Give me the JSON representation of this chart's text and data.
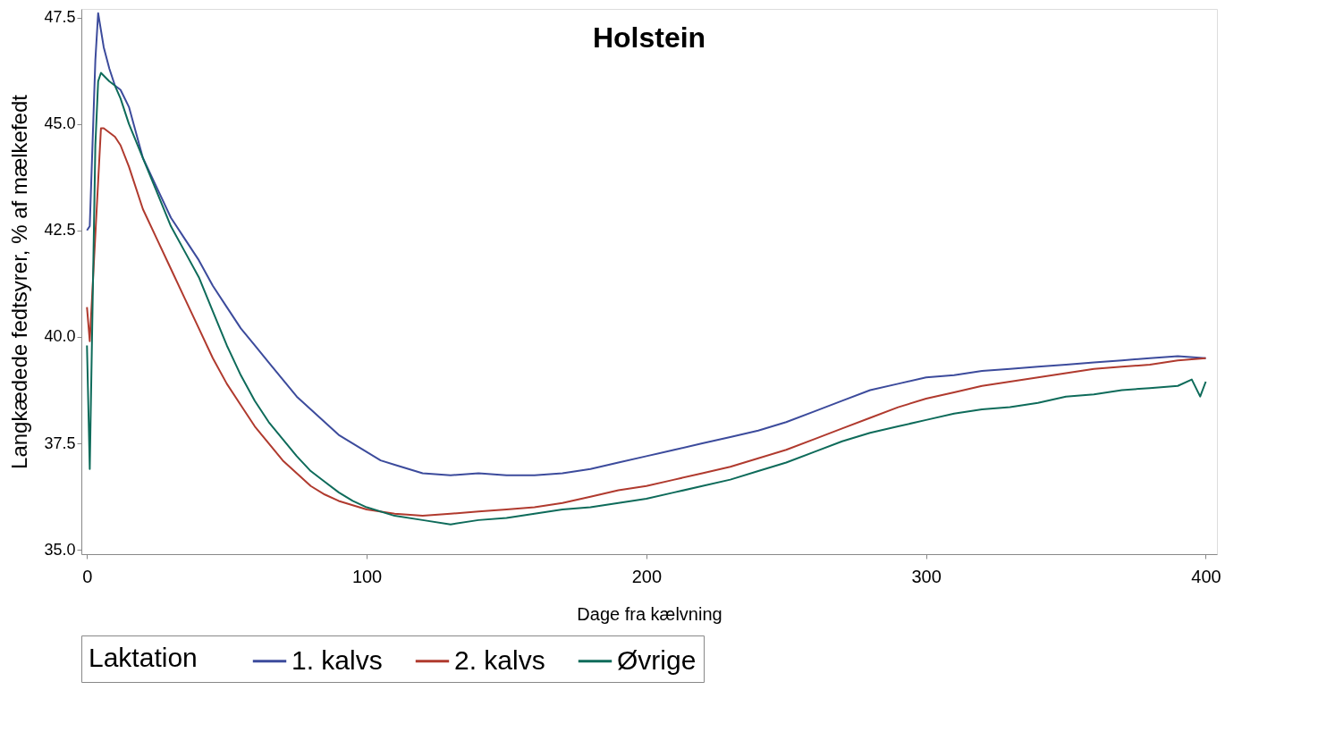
{
  "chart_data": {
    "type": "line",
    "title": "Holstein",
    "xlabel": "Dage fra kælvning",
    "ylabel": "Langkædede fedtsyrer, % af mælkefedt",
    "legend_title": "Laktation",
    "legend": "bottom",
    "grid": false,
    "line_style": "solid",
    "marker": "none",
    "xlim": [
      -2,
      404
    ],
    "ylim": [
      34.9,
      47.7
    ],
    "xticks": [
      0,
      100,
      200,
      300,
      400
    ],
    "yticks": [
      {
        "value": 35,
        "label": "35.0"
      },
      {
        "value": 37.5,
        "label": "37.5"
      },
      {
        "value": 40,
        "label": "40.0"
      },
      {
        "value": 42.5,
        "label": "42.5"
      },
      {
        "value": 45,
        "label": "45.0"
      },
      {
        "value": 47.5,
        "label": "47.5"
      }
    ],
    "series": [
      {
        "name": "1. kalvs",
        "color": "#3c4b9c",
        "x": [
          0,
          1,
          3,
          4,
          6,
          8,
          10,
          12,
          15,
          20,
          25,
          30,
          35,
          40,
          45,
          50,
          55,
          60,
          65,
          70,
          75,
          80,
          85,
          90,
          95,
          100,
          105,
          110,
          120,
          130,
          140,
          150,
          160,
          170,
          180,
          190,
          200,
          210,
          220,
          230,
          240,
          250,
          260,
          270,
          280,
          290,
          300,
          310,
          320,
          330,
          340,
          350,
          360,
          370,
          380,
          390,
          400
        ],
        "values": [
          42.5,
          42.6,
          46.5,
          47.6,
          46.8,
          46.3,
          45.9,
          45.8,
          45.4,
          44.2,
          43.5,
          42.8,
          42.3,
          41.8,
          41.2,
          40.7,
          40.2,
          39.8,
          39.4,
          39.0,
          38.6,
          38.3,
          38.0,
          37.7,
          37.5,
          37.3,
          37.1,
          37.0,
          36.8,
          36.75,
          36.8,
          36.75,
          36.75,
          36.8,
          36.9,
          37.05,
          37.2,
          37.35,
          37.5,
          37.65,
          37.8,
          38.0,
          38.25,
          38.5,
          38.75,
          38.9,
          39.05,
          39.1,
          39.2,
          39.25,
          39.3,
          39.35,
          39.4,
          39.45,
          39.5,
          39.55,
          39.5
        ]
      },
      {
        "name": "2. kalvs",
        "color": "#b03a2e",
        "x": [
          0,
          1,
          5,
          6,
          8,
          10,
          12,
          15,
          20,
          25,
          30,
          35,
          40,
          45,
          50,
          55,
          60,
          65,
          70,
          75,
          80,
          85,
          90,
          95,
          100,
          110,
          120,
          130,
          140,
          150,
          160,
          170,
          180,
          190,
          200,
          210,
          220,
          230,
          240,
          250,
          260,
          270,
          280,
          290,
          300,
          310,
          320,
          330,
          340,
          350,
          360,
          370,
          380,
          390,
          400
        ],
        "values": [
          40.7,
          39.9,
          44.9,
          44.9,
          44.8,
          44.7,
          44.5,
          44.0,
          43.0,
          42.3,
          41.6,
          40.9,
          40.2,
          39.5,
          38.9,
          38.4,
          37.9,
          37.5,
          37.1,
          36.8,
          36.5,
          36.3,
          36.15,
          36.05,
          35.95,
          35.85,
          35.8,
          35.85,
          35.9,
          35.95,
          36.0,
          36.1,
          36.25,
          36.4,
          36.5,
          36.65,
          36.8,
          36.95,
          37.15,
          37.35,
          37.6,
          37.85,
          38.1,
          38.35,
          38.55,
          38.7,
          38.85,
          38.95,
          39.05,
          39.15,
          39.25,
          39.3,
          39.35,
          39.45,
          39.5
        ]
      },
      {
        "name": "Øvrige",
        "color": "#0e6b5a",
        "x": [
          0,
          1,
          3,
          4,
          5,
          8,
          10,
          12,
          15,
          20,
          25,
          30,
          35,
          40,
          45,
          50,
          55,
          60,
          65,
          70,
          75,
          80,
          85,
          90,
          95,
          100,
          110,
          120,
          130,
          140,
          150,
          160,
          170,
          180,
          190,
          200,
          210,
          220,
          230,
          240,
          250,
          260,
          270,
          280,
          290,
          300,
          310,
          320,
          330,
          340,
          350,
          360,
          370,
          380,
          390,
          395,
          398,
          400
        ],
        "values": [
          39.8,
          36.9,
          44.5,
          46.0,
          46.2,
          46.0,
          45.9,
          45.6,
          45.0,
          44.2,
          43.4,
          42.6,
          42.0,
          41.4,
          40.6,
          39.8,
          39.1,
          38.5,
          38.0,
          37.6,
          37.2,
          36.85,
          36.6,
          36.35,
          36.15,
          36.0,
          35.8,
          35.7,
          35.6,
          35.7,
          35.75,
          35.85,
          35.95,
          36.0,
          36.1,
          36.2,
          36.35,
          36.5,
          36.65,
          36.85,
          37.05,
          37.3,
          37.55,
          37.75,
          37.9,
          38.05,
          38.2,
          38.3,
          38.35,
          38.45,
          38.6,
          38.65,
          38.75,
          38.8,
          38.85,
          39.0,
          38.6,
          38.95
        ]
      }
    ]
  }
}
